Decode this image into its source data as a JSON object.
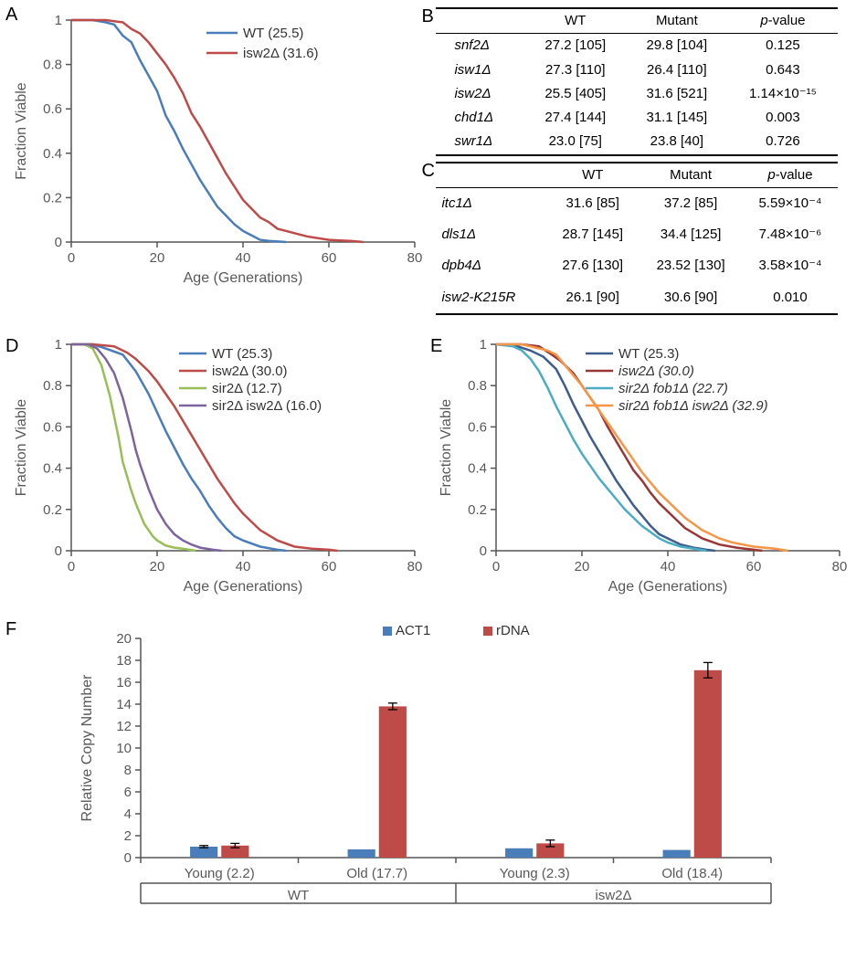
{
  "panelA": {
    "label": "A",
    "type": "line",
    "x_label": "Age (Generations)",
    "y_label": "Fraction Viable",
    "xlim": [
      0,
      80
    ],
    "xtick_step": 20,
    "ylim": [
      0,
      1
    ],
    "ytick_step": 0.2,
    "background_color": "#ffffff",
    "axis_color": "#555555",
    "series": [
      {
        "name": "WT (25.5)",
        "color": "#4a7ebb",
        "points": [
          [
            0,
            1
          ],
          [
            5,
            1
          ],
          [
            8,
            0.99
          ],
          [
            10,
            0.98
          ],
          [
            12,
            0.93
          ],
          [
            14,
            0.9
          ],
          [
            16,
            0.82
          ],
          [
            18,
            0.75
          ],
          [
            20,
            0.68
          ],
          [
            22,
            0.57
          ],
          [
            24,
            0.5
          ],
          [
            26,
            0.42
          ],
          [
            28,
            0.35
          ],
          [
            30,
            0.28
          ],
          [
            32,
            0.22
          ],
          [
            34,
            0.16
          ],
          [
            36,
            0.12
          ],
          [
            38,
            0.08
          ],
          [
            40,
            0.05
          ],
          [
            42,
            0.03
          ],
          [
            44,
            0.01
          ],
          [
            46,
            0.005
          ],
          [
            50,
            0
          ]
        ]
      },
      {
        "name": "isw2Δ (31.6)",
        "color": "#be4b48",
        "points": [
          [
            0,
            1
          ],
          [
            8,
            1
          ],
          [
            12,
            0.99
          ],
          [
            14,
            0.96
          ],
          [
            16,
            0.94
          ],
          [
            18,
            0.9
          ],
          [
            20,
            0.85
          ],
          [
            22,
            0.8
          ],
          [
            24,
            0.74
          ],
          [
            26,
            0.67
          ],
          [
            28,
            0.58
          ],
          [
            30,
            0.52
          ],
          [
            32,
            0.45
          ],
          [
            34,
            0.38
          ],
          [
            36,
            0.31
          ],
          [
            38,
            0.25
          ],
          [
            40,
            0.19
          ],
          [
            42,
            0.15
          ],
          [
            44,
            0.11
          ],
          [
            46,
            0.09
          ],
          [
            48,
            0.06
          ],
          [
            50,
            0.05
          ],
          [
            52,
            0.04
          ],
          [
            55,
            0.025
          ],
          [
            60,
            0.01
          ],
          [
            65,
            0.005
          ],
          [
            68,
            0
          ]
        ]
      }
    ],
    "legend_pos": "top-right"
  },
  "panelB": {
    "label": "B",
    "type": "table",
    "columns": [
      "",
      "WT",
      "Mutant",
      "p-value"
    ],
    "rows": [
      {
        "gene": "snf2Δ",
        "wt": "27.2 [105]",
        "mut": "29.8 [104]",
        "p": "0.125"
      },
      {
        "gene": "isw1Δ",
        "wt": "27.3 [110]",
        "mut": "26.4 [110]",
        "p": "0.643"
      },
      {
        "gene": "isw2Δ",
        "wt": "25.5 [405]",
        "mut": "31.6 [521]",
        "p": "1.14×10⁻¹⁵"
      },
      {
        "gene": "chd1Δ",
        "wt": "27.4 [144]",
        "mut": "31.1 [145]",
        "p": "0.003"
      },
      {
        "gene": "swr1Δ",
        "wt": "23.0 [75]",
        "mut": "23.8 [40]",
        "p": "0.726"
      }
    ]
  },
  "panelC": {
    "label": "C",
    "type": "table",
    "columns": [
      "",
      "WT",
      "Mutant",
      "p-value"
    ],
    "rows": [
      {
        "gene": "itc1Δ",
        "wt": "31.6 [85]",
        "mut": "37.2 [85]",
        "p": "5.59×10⁻⁴"
      },
      {
        "gene": "dls1Δ",
        "wt": "28.7 [145]",
        "mut": "34.4 [125]",
        "p": "7.48×10⁻⁶"
      },
      {
        "gene": "dpb4Δ",
        "wt": "27.6 [130]",
        "mut": "23.52 [130]",
        "p": "3.58×10⁻⁴"
      },
      {
        "gene": "isw2-K215R",
        "wt": "26.1 [90]",
        "mut": "30.6 [90]",
        "p": "0.010"
      }
    ]
  },
  "panelD": {
    "label": "D",
    "type": "line",
    "x_label": "Age (Generations)",
    "y_label": "Fraction Viable",
    "xlim": [
      0,
      80
    ],
    "xtick_step": 20,
    "ylim": [
      0,
      1
    ],
    "ytick_step": 0.2,
    "series": [
      {
        "name": "WT (25.3)",
        "color": "#4a7ebb",
        "points": [
          [
            0,
            1
          ],
          [
            5,
            1
          ],
          [
            8,
            0.98
          ],
          [
            12,
            0.95
          ],
          [
            15,
            0.87
          ],
          [
            18,
            0.76
          ],
          [
            20,
            0.67
          ],
          [
            22,
            0.58
          ],
          [
            24,
            0.5
          ],
          [
            26,
            0.42
          ],
          [
            28,
            0.35
          ],
          [
            30,
            0.29
          ],
          [
            32,
            0.22
          ],
          [
            34,
            0.16
          ],
          [
            36,
            0.11
          ],
          [
            38,
            0.07
          ],
          [
            40,
            0.05
          ],
          [
            44,
            0.02
          ],
          [
            48,
            0.005
          ],
          [
            50,
            0
          ]
        ]
      },
      {
        "name": "isw2Δ (30.0)",
        "color": "#be4b48",
        "points": [
          [
            0,
            1
          ],
          [
            5,
            1
          ],
          [
            10,
            0.99
          ],
          [
            13,
            0.96
          ],
          [
            15,
            0.93
          ],
          [
            18,
            0.87
          ],
          [
            20,
            0.82
          ],
          [
            22,
            0.76
          ],
          [
            24,
            0.7
          ],
          [
            26,
            0.63
          ],
          [
            28,
            0.56
          ],
          [
            30,
            0.49
          ],
          [
            32,
            0.42
          ],
          [
            34,
            0.35
          ],
          [
            36,
            0.29
          ],
          [
            38,
            0.23
          ],
          [
            40,
            0.18
          ],
          [
            42,
            0.14
          ],
          [
            44,
            0.1
          ],
          [
            48,
            0.05
          ],
          [
            52,
            0.02
          ],
          [
            56,
            0.01
          ],
          [
            60,
            0.005
          ],
          [
            62,
            0
          ]
        ]
      },
      {
        "name": "sir2Δ (12.7)",
        "color": "#98bf55",
        "points": [
          [
            0,
            1
          ],
          [
            3,
            1
          ],
          [
            5,
            0.98
          ],
          [
            7,
            0.9
          ],
          [
            9,
            0.75
          ],
          [
            10,
            0.65
          ],
          [
            11,
            0.55
          ],
          [
            12,
            0.43
          ],
          [
            13,
            0.36
          ],
          [
            14,
            0.29
          ],
          [
            15,
            0.23
          ],
          [
            16,
            0.18
          ],
          [
            17,
            0.13
          ],
          [
            18,
            0.1
          ],
          [
            19,
            0.07
          ],
          [
            20,
            0.05
          ],
          [
            22,
            0.025
          ],
          [
            24,
            0.015
          ],
          [
            26,
            0.01
          ],
          [
            29,
            0
          ]
        ]
      },
      {
        "name": "sir2Δ isw2Δ (16.0)",
        "color": "#7e649e",
        "points": [
          [
            0,
            1
          ],
          [
            4,
            1
          ],
          [
            6,
            0.98
          ],
          [
            8,
            0.93
          ],
          [
            10,
            0.86
          ],
          [
            12,
            0.74
          ],
          [
            14,
            0.58
          ],
          [
            15,
            0.49
          ],
          [
            16,
            0.42
          ],
          [
            17,
            0.36
          ],
          [
            18,
            0.3
          ],
          [
            19,
            0.25
          ],
          [
            20,
            0.2
          ],
          [
            22,
            0.13
          ],
          [
            24,
            0.08
          ],
          [
            26,
            0.05
          ],
          [
            28,
            0.03
          ],
          [
            30,
            0.015
          ],
          [
            33,
            0.005
          ],
          [
            35,
            0
          ]
        ]
      }
    ]
  },
  "panelE": {
    "label": "E",
    "type": "line",
    "x_label": "Age (Generations)",
    "y_label": "Fraction Viable",
    "xlim": [
      0,
      80
    ],
    "xtick_step": 20,
    "ylim": [
      0,
      1
    ],
    "ytick_step": 0.2,
    "series": [
      {
        "name": "WT (25.3)",
        "color": "#3d5e8d",
        "points": [
          [
            0,
            1
          ],
          [
            5,
            0.99
          ],
          [
            8,
            0.97
          ],
          [
            11,
            0.94
          ],
          [
            14,
            0.88
          ],
          [
            16,
            0.8
          ],
          [
            18,
            0.71
          ],
          [
            20,
            0.63
          ],
          [
            22,
            0.55
          ],
          [
            24,
            0.48
          ],
          [
            26,
            0.41
          ],
          [
            28,
            0.34
          ],
          [
            30,
            0.28
          ],
          [
            32,
            0.22
          ],
          [
            34,
            0.17
          ],
          [
            36,
            0.12
          ],
          [
            38,
            0.08
          ],
          [
            40,
            0.06
          ],
          [
            43,
            0.03
          ],
          [
            46,
            0.015
          ],
          [
            49,
            0.005
          ],
          [
            51,
            0
          ]
        ]
      },
      {
        "name": "isw2Δ (30.0)",
        "color": "#983735",
        "italic": true,
        "points": [
          [
            0,
            1
          ],
          [
            6,
            1
          ],
          [
            10,
            0.99
          ],
          [
            13,
            0.95
          ],
          [
            15,
            0.92
          ],
          [
            18,
            0.86
          ],
          [
            20,
            0.8
          ],
          [
            22,
            0.74
          ],
          [
            24,
            0.68
          ],
          [
            26,
            0.6
          ],
          [
            28,
            0.53
          ],
          [
            30,
            0.46
          ],
          [
            32,
            0.39
          ],
          [
            34,
            0.34
          ],
          [
            36,
            0.28
          ],
          [
            38,
            0.23
          ],
          [
            40,
            0.19
          ],
          [
            42,
            0.15
          ],
          [
            44,
            0.11
          ],
          [
            48,
            0.06
          ],
          [
            52,
            0.03
          ],
          [
            56,
            0.015
          ],
          [
            60,
            0.005
          ],
          [
            62,
            0
          ]
        ]
      },
      {
        "name": "sir2Δ fob1Δ (22.7)",
        "color": "#4bacc6",
        "italic": true,
        "points": [
          [
            0,
            1
          ],
          [
            4,
            0.99
          ],
          [
            6,
            0.97
          ],
          [
            8,
            0.93
          ],
          [
            10,
            0.87
          ],
          [
            12,
            0.79
          ],
          [
            14,
            0.7
          ],
          [
            16,
            0.62
          ],
          [
            18,
            0.54
          ],
          [
            20,
            0.47
          ],
          [
            22,
            0.41
          ],
          [
            24,
            0.35
          ],
          [
            26,
            0.3
          ],
          [
            28,
            0.25
          ],
          [
            30,
            0.2
          ],
          [
            32,
            0.16
          ],
          [
            34,
            0.12
          ],
          [
            36,
            0.09
          ],
          [
            38,
            0.06
          ],
          [
            40,
            0.04
          ],
          [
            43,
            0.02
          ],
          [
            46,
            0.01
          ],
          [
            49,
            0
          ]
        ]
      },
      {
        "name": "sir2Δ fob1Δ isw2Δ (32.9)",
        "color": "#f79646",
        "italic": true,
        "points": [
          [
            0,
            1
          ],
          [
            6,
            1
          ],
          [
            8,
            0.99
          ],
          [
            10,
            0.98
          ],
          [
            12,
            0.97
          ],
          [
            14,
            0.95
          ],
          [
            16,
            0.9
          ],
          [
            18,
            0.85
          ],
          [
            20,
            0.8
          ],
          [
            22,
            0.74
          ],
          [
            24,
            0.68
          ],
          [
            26,
            0.62
          ],
          [
            28,
            0.56
          ],
          [
            30,
            0.5
          ],
          [
            32,
            0.44
          ],
          [
            34,
            0.38
          ],
          [
            36,
            0.33
          ],
          [
            38,
            0.28
          ],
          [
            40,
            0.24
          ],
          [
            42,
            0.2
          ],
          [
            44,
            0.16
          ],
          [
            46,
            0.13
          ],
          [
            48,
            0.1
          ],
          [
            50,
            0.08
          ],
          [
            52,
            0.06
          ],
          [
            55,
            0.04
          ],
          [
            60,
            0.02
          ],
          [
            65,
            0.01
          ],
          [
            68,
            0
          ]
        ]
      }
    ]
  },
  "panelF": {
    "label": "F",
    "type": "bar",
    "y_label": "Relative Copy Number",
    "ylim": [
      0,
      20
    ],
    "ytick_step": 2,
    "series": [
      {
        "name": "ACT1",
        "color": "#4a7ebb"
      },
      {
        "name": "rDNA",
        "color": "#be4b48"
      }
    ],
    "group_labels": [
      "WT",
      "isw2Δ"
    ],
    "subgroup_labels": [
      "Young (2.2)",
      "Old (17.7)",
      "Young (2.3)",
      "Old (18.4)"
    ],
    "bars": [
      {
        "subgroup": "Young (2.2)",
        "series": "ACT1",
        "value": 1.0,
        "err": 0.1
      },
      {
        "subgroup": "Young (2.2)",
        "series": "rDNA",
        "value": 1.1,
        "err": 0.2
      },
      {
        "subgroup": "Old (17.7)",
        "series": "ACT1",
        "value": 0.75,
        "err": 0
      },
      {
        "subgroup": "Old (17.7)",
        "series": "rDNA",
        "value": 13.8,
        "err": 0.3
      },
      {
        "subgroup": "Young (2.3)",
        "series": "ACT1",
        "value": 0.85,
        "err": 0
      },
      {
        "subgroup": "Young (2.3)",
        "series": "rDNA",
        "value": 1.3,
        "err": 0.3
      },
      {
        "subgroup": "Old (18.4)",
        "series": "ACT1",
        "value": 0.7,
        "err": 0
      },
      {
        "subgroup": "Old (18.4)",
        "series": "rDNA",
        "value": 17.1,
        "err": 0.7
      }
    ],
    "bar_width": 0.35,
    "error_color": "#000000"
  }
}
